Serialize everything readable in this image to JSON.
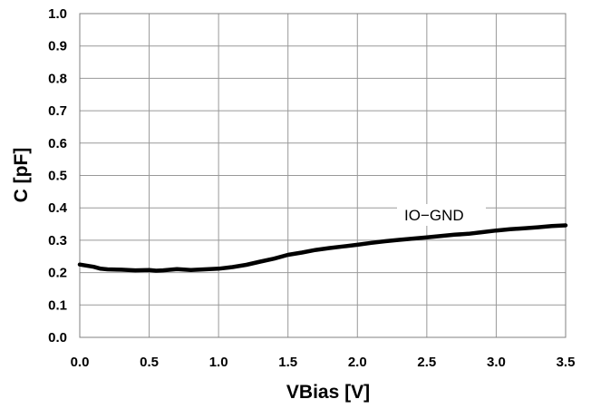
{
  "chart_data": {
    "type": "line",
    "xlabel": "VBias [V]",
    "ylabel": "C [pF]",
    "xlim": [
      0.0,
      3.5
    ],
    "ylim": [
      0.0,
      1.0
    ],
    "xticks": [
      "0.0",
      "0.5",
      "1.0",
      "1.5",
      "2.0",
      "2.5",
      "3.0",
      "3.5"
    ],
    "yticks": [
      "0.0",
      "0.1",
      "0.2",
      "0.3",
      "0.4",
      "0.5",
      "0.6",
      "0.7",
      "0.8",
      "0.9",
      "1.0"
    ],
    "grid": true,
    "legend": "none",
    "annotation": "IO−GND",
    "series": [
      {
        "name": "IO−GND",
        "color": "#000000",
        "x": [
          0.0,
          0.1,
          0.15,
          0.2,
          0.3,
          0.4,
          0.5,
          0.55,
          0.6,
          0.7,
          0.8,
          0.9,
          1.0,
          1.1,
          1.2,
          1.3,
          1.4,
          1.5,
          1.6,
          1.7,
          1.8,
          1.9,
          2.0,
          2.1,
          2.2,
          2.3,
          2.4,
          2.5,
          2.6,
          2.7,
          2.8,
          2.9,
          3.0,
          3.1,
          3.2,
          3.3,
          3.4,
          3.5
        ],
        "y": [
          0.225,
          0.218,
          0.212,
          0.21,
          0.209,
          0.207,
          0.208,
          0.206,
          0.207,
          0.211,
          0.208,
          0.21,
          0.212,
          0.217,
          0.224,
          0.234,
          0.243,
          0.255,
          0.262,
          0.27,
          0.276,
          0.281,
          0.286,
          0.292,
          0.297,
          0.301,
          0.305,
          0.309,
          0.313,
          0.317,
          0.32,
          0.325,
          0.33,
          0.334,
          0.337,
          0.34,
          0.344,
          0.346
        ]
      }
    ]
  }
}
